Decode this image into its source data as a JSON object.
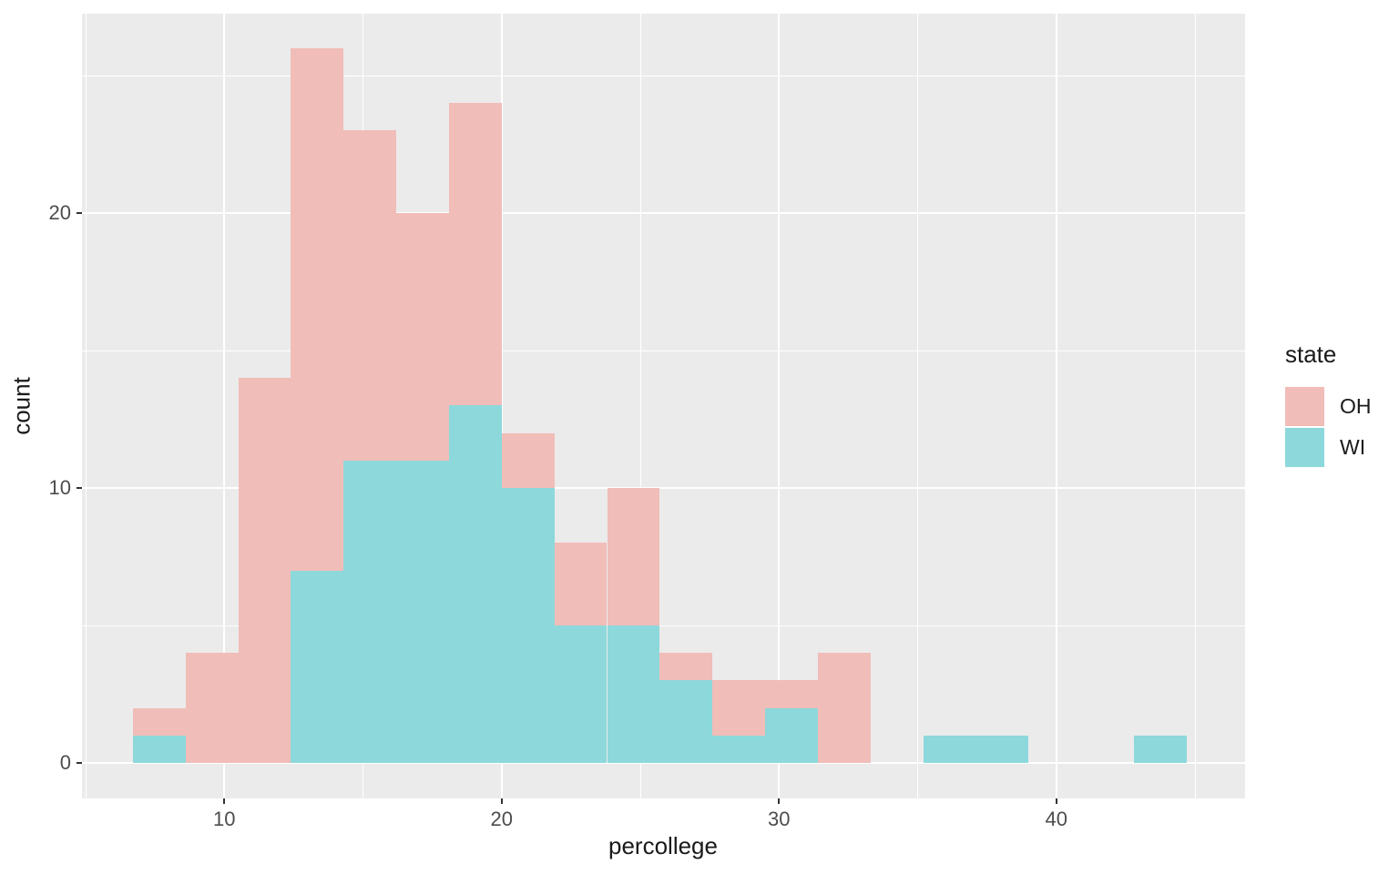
{
  "figure": {
    "background": "#FFFFFF",
    "panel_background": "#EBEBEB",
    "grid_color": "#FFFFFF",
    "tick_mark_color": "#333333",
    "tick_label_color": "#4d4d4d",
    "title_color": "#1a1a1a"
  },
  "axes": {
    "x": {
      "title": "percollege",
      "major_ticks": [
        10,
        20,
        30,
        40
      ],
      "minor_ticks": [
        5,
        15,
        25,
        35,
        45
      ]
    },
    "y": {
      "title": "count",
      "major_ticks": [
        0,
        10,
        20
      ],
      "minor_ticks": [
        5,
        15,
        25
      ]
    }
  },
  "legend": {
    "title": "state",
    "entries": [
      {
        "label": "OH",
        "color": "#F1BDB8"
      },
      {
        "label": "WI",
        "color": "#8DD8DB"
      }
    ]
  },
  "chart_data": {
    "type": "bar",
    "subtype": "overlaid-histogram",
    "title": "",
    "xlabel": "percollege",
    "ylabel": "count",
    "xlim": [
      4.9,
      46.8
    ],
    "ylim": [
      -1.3,
      27.3
    ],
    "grid": true,
    "legend_position": "right",
    "legend_title": "state",
    "bin_start": 6.7,
    "bin_width": 1.9,
    "bin_edges": [
      6.7,
      8.6,
      10.5,
      12.4,
      14.3,
      16.2,
      18.1,
      20.0,
      21.9,
      23.8,
      25.7,
      27.6,
      29.5,
      31.4,
      33.3,
      35.2,
      37.1,
      39.0,
      40.9,
      42.8,
      44.7
    ],
    "series": [
      {
        "name": "OH",
        "color": "#F1BDB8",
        "counts": [
          2,
          4,
          14,
          26,
          23,
          20,
          24,
          12,
          8,
          10,
          4,
          3,
          3,
          4,
          0,
          0,
          0,
          0,
          0,
          0
        ]
      },
      {
        "name": "WI",
        "color": "#8DD8DB",
        "counts": [
          1,
          0,
          0,
          7,
          11,
          11,
          13,
          10,
          5,
          5,
          3,
          1,
          2,
          0,
          0,
          1,
          1,
          0,
          0,
          1
        ]
      }
    ]
  }
}
